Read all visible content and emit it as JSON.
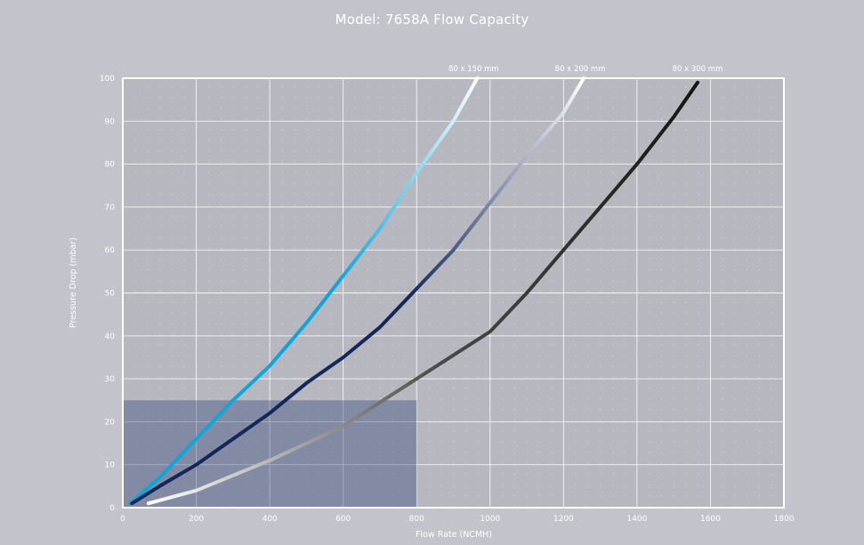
{
  "title": "Model: 7658A Flow Capacity",
  "chart_data": {
    "type": "line",
    "title": "Model: 7658A Flow Capacity",
    "xlabel": "Flow Rate (NCMH)",
    "ylabel": "Pressure Drop (mbar)",
    "xlim": [
      0,
      1800
    ],
    "ylim": [
      0,
      100
    ],
    "xticks": [
      "0",
      "200",
      "400",
      "600",
      "800",
      "1000",
      "1200",
      "1400",
      "1600",
      "1800"
    ],
    "yticks": [
      "0",
      "10",
      "20",
      "30",
      "40",
      "50",
      "60",
      "70",
      "80",
      "90",
      "100"
    ],
    "grid": true,
    "highlight_region": {
      "x": [
        0,
        800
      ],
      "y": [
        0,
        25
      ]
    },
    "series": [
      {
        "name": "80 x 150 mm",
        "colors": [
          "#0aa6dc",
          "#ffffff"
        ],
        "points": [
          [
            20,
            1
          ],
          [
            100,
            7
          ],
          [
            200,
            16
          ],
          [
            300,
            25
          ],
          [
            400,
            33
          ],
          [
            500,
            43
          ],
          [
            600,
            54
          ],
          [
            700,
            65
          ],
          [
            800,
            78
          ],
          [
            900,
            90
          ],
          [
            965,
            100
          ]
        ]
      },
      {
        "name": "80 x 200 mm",
        "colors": [
          "#12275a",
          "#ffffff"
        ],
        "points": [
          [
            25,
            1
          ],
          [
            100,
            5
          ],
          [
            200,
            10
          ],
          [
            300,
            16
          ],
          [
            400,
            22
          ],
          [
            500,
            29
          ],
          [
            600,
            35
          ],
          [
            700,
            42
          ],
          [
            800,
            51
          ],
          [
            900,
            60
          ],
          [
            1000,
            71
          ],
          [
            1100,
            82
          ],
          [
            1200,
            92
          ],
          [
            1255,
            100
          ]
        ]
      },
      {
        "name": "80 x 300 mm",
        "colors": [
          "#ffffff",
          "#141414"
        ],
        "points": [
          [
            70,
            1
          ],
          [
            200,
            4
          ],
          [
            400,
            11
          ],
          [
            600,
            19
          ],
          [
            800,
            30
          ],
          [
            1000,
            41
          ],
          [
            1100,
            50
          ],
          [
            1200,
            60
          ],
          [
            1300,
            70
          ],
          [
            1400,
            80
          ],
          [
            1500,
            91
          ],
          [
            1565,
            99
          ]
        ]
      }
    ]
  }
}
